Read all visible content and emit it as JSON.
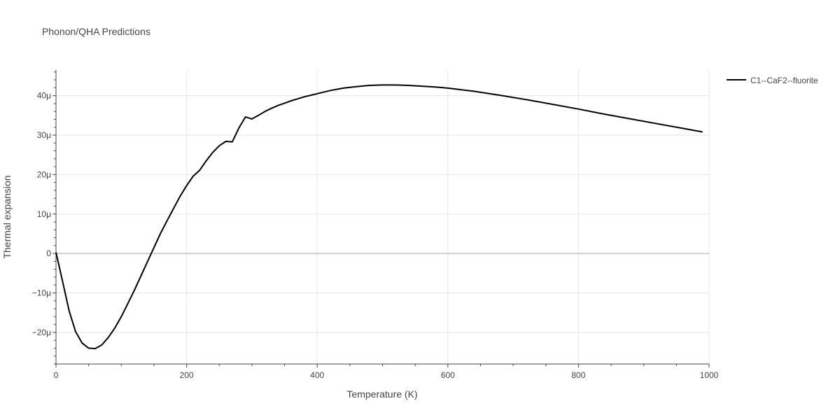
{
  "chart_data": {
    "type": "line",
    "title": "Phonon/QHA Predictions",
    "xlabel": "Temperature (K)",
    "ylabel": "Thermal expansion",
    "xlim": [
      0,
      1000
    ],
    "ylim": [
      -28,
      46.5
    ],
    "grid": true,
    "legend_position": "top-right",
    "x_ticks": [
      0,
      200,
      400,
      600,
      800,
      1000
    ],
    "x_tick_labels": [
      "0",
      "200",
      "400",
      "600",
      "800",
      "1000"
    ],
    "y_ticks": [
      -20,
      -10,
      0,
      10,
      20,
      30,
      40
    ],
    "y_tick_labels": [
      "−20μ",
      "−10μ",
      "0",
      "10μ",
      "20μ",
      "30μ",
      "40μ"
    ],
    "series": [
      {
        "name": "C1--CaF2--fluorite",
        "color": "#000000",
        "x": [
          0,
          10,
          20,
          30,
          40,
          50,
          60,
          70,
          80,
          90,
          100,
          110,
          120,
          130,
          140,
          150,
          160,
          170,
          180,
          190,
          200,
          210,
          220,
          230,
          240,
          250,
          260,
          270,
          280,
          290,
          300,
          310,
          320,
          330,
          340,
          350,
          360,
          370,
          380,
          390,
          400,
          420,
          440,
          460,
          480,
          500,
          520,
          540,
          560,
          580,
          600,
          640,
          680,
          720,
          760,
          800,
          840,
          880,
          920,
          960,
          990
        ],
        "y": [
          0.3,
          -7,
          -14.5,
          -19.8,
          -22.7,
          -24,
          -24.1,
          -23.2,
          -21.3,
          -18.9,
          -16,
          -12.7,
          -9.3,
          -5.7,
          -2.1,
          1.5,
          5.1,
          8.3,
          11.4,
          14.5,
          17.2,
          19.6,
          21.1,
          23.5,
          25.6,
          27.3,
          28.4,
          28.3,
          31.8,
          34.6,
          34.1,
          35,
          36,
          36.8,
          37.5,
          38.1,
          38.7,
          39.2,
          39.7,
          40.1,
          40.5,
          41.3,
          41.9,
          42.3,
          42.6,
          42.7,
          42.7,
          42.6,
          42.4,
          42.2,
          41.9,
          41.1,
          40.1,
          39,
          37.8,
          36.6,
          35.3,
          34.1,
          32.9,
          31.7,
          30.8
        ]
      }
    ]
  }
}
